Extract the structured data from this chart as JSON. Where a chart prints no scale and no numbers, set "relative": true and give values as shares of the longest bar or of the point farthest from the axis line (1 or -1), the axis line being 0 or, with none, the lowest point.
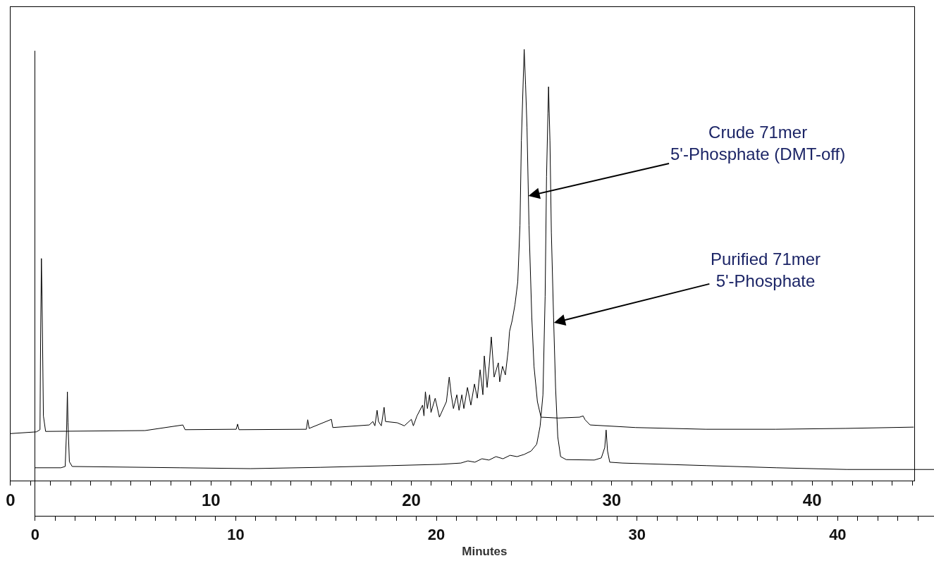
{
  "chart_data": [
    {
      "type": "line",
      "relative": true,
      "line_style": "solid",
      "marker": "none",
      "xlim": [
        0,
        45.1
      ],
      "xticks": [
        0,
        {
          "value": 1,
          "label": null
        },
        {
          "value": 2,
          "label": null
        },
        {
          "value": 3,
          "label": null
        },
        {
          "value": 4,
          "label": null
        },
        {
          "value": 5,
          "label": null
        },
        {
          "value": 6,
          "label": null
        },
        {
          "value": 7,
          "label": null
        },
        {
          "value": 8,
          "label": null
        },
        {
          "value": 9,
          "label": null
        },
        10,
        {
          "value": 11,
          "label": null
        },
        {
          "value": 12,
          "label": null
        },
        {
          "value": 13,
          "label": null
        },
        {
          "value": 14,
          "label": null
        },
        {
          "value": 15,
          "label": null
        },
        {
          "value": 16,
          "label": null
        },
        {
          "value": 17,
          "label": null
        },
        {
          "value": 18,
          "label": null
        },
        {
          "value": 19,
          "label": null
        },
        20,
        {
          "value": 21,
          "label": null
        },
        {
          "value": 22,
          "label": null
        },
        {
          "value": 23,
          "label": null
        },
        {
          "value": 24,
          "label": null
        },
        {
          "value": 25,
          "label": null
        },
        {
          "value": 26,
          "label": null
        },
        {
          "value": 27,
          "label": null
        },
        {
          "value": 28,
          "label": null
        },
        {
          "value": 29,
          "label": null
        },
        30,
        {
          "value": 31,
          "label": null
        },
        {
          "value": 32,
          "label": null
        },
        {
          "value": 33,
          "label": null
        },
        {
          "value": 34,
          "label": null
        },
        {
          "value": 35,
          "label": null
        },
        {
          "value": 36,
          "label": null
        },
        {
          "value": 37,
          "label": null
        },
        {
          "value": 38,
          "label": null
        },
        {
          "value": 39,
          "label": null
        },
        40,
        {
          "value": 41,
          "label": null
        },
        {
          "value": 42,
          "label": null
        },
        {
          "value": 43,
          "label": null
        },
        {
          "value": 44,
          "label": null
        },
        {
          "value": 45,
          "label": null
        }
      ],
      "annotations": [
        {
          "text": "Crude 71mer\n5'-Phosphate (DMT-off)",
          "x": 25.84,
          "y": 0.66
        }
      ],
      "series": [
        {
          "color": "#000000",
          "x": [
            0,
            1.29,
            1.47,
            1.5,
            1.54,
            1.57,
            1.64,
            1.75,
            6.71,
            8.6,
            8.71,
            11.26,
            11.33,
            11.4,
            14.76,
            14.83,
            14.9,
            16.01,
            16.08,
            17.9,
            18.08,
            18.18,
            18.29,
            18.36,
            18.5,
            18.64,
            18.71,
            19.3,
            19.65,
            20.0,
            20.1,
            20.28,
            20.56,
            20.63,
            20.7,
            20.8,
            20.91,
            20.98,
            21.19,
            21.4,
            21.75,
            21.89,
            21.99,
            22.1,
            22.27,
            22.38,
            22.52,
            22.62,
            22.8,
            22.97,
            23.15,
            23.29,
            23.43,
            23.57,
            23.64,
            23.78,
            23.88,
            23.99,
            24.13,
            24.34,
            24.41,
            24.55,
            24.69,
            24.83,
            24.9,
            25.03,
            25.17,
            25.31,
            25.42,
            25.49,
            25.63,
            25.7,
            25.77,
            25.87,
            26.01,
            26.12,
            26.29,
            26.47,
            27.34,
            28.39,
            28.57,
            28.67,
            28.92,
            31.19,
            34.69,
            38.18,
            41.68,
            45.07
          ],
          "values": [
            0.109,
            0.113,
            0.118,
            0.33,
            0.515,
            0.428,
            0.15,
            0.114,
            0.116,
            0.129,
            0.118,
            0.119,
            0.131,
            0.118,
            0.119,
            0.141,
            0.121,
            0.142,
            0.123,
            0.129,
            0.137,
            0.127,
            0.163,
            0.137,
            0.127,
            0.17,
            0.137,
            0.134,
            0.127,
            0.142,
            0.127,
            0.15,
            0.175,
            0.15,
            0.206,
            0.167,
            0.199,
            0.158,
            0.191,
            0.147,
            0.183,
            0.24,
            0.199,
            0.167,
            0.199,
            0.163,
            0.199,
            0.167,
            0.216,
            0.175,
            0.224,
            0.191,
            0.257,
            0.199,
            0.289,
            0.216,
            0.265,
            0.333,
            0.24,
            0.273,
            0.229,
            0.265,
            0.245,
            0.301,
            0.346,
            0.371,
            0.408,
            0.461,
            0.592,
            0.788,
            1,
            0.918,
            0.82,
            0.592,
            0.379,
            0.265,
            0.183,
            0.147,
            0.145,
            0.147,
            0.15,
            0.141,
            0.129,
            0.123,
            0.119,
            0.119,
            0.121,
            0.124
          ]
        }
      ]
    },
    {
      "type": "line",
      "relative": true,
      "line_style": "solid",
      "marker": "none",
      "xlabel": "Minutes",
      "xlim": [
        0,
        44.8
      ],
      "xticks": [
        0,
        {
          "value": 1,
          "label": null
        },
        {
          "value": 2,
          "label": null
        },
        {
          "value": 3,
          "label": null
        },
        {
          "value": 4,
          "label": null
        },
        {
          "value": 5,
          "label": null
        },
        {
          "value": 6,
          "label": null
        },
        {
          "value": 7,
          "label": null
        },
        {
          "value": 8,
          "label": null
        },
        {
          "value": 9,
          "label": null
        },
        10,
        {
          "value": 11,
          "label": null
        },
        {
          "value": 12,
          "label": null
        },
        {
          "value": 13,
          "label": null
        },
        {
          "value": 14,
          "label": null
        },
        {
          "value": 15,
          "label": null
        },
        {
          "value": 16,
          "label": null
        },
        {
          "value": 17,
          "label": null
        },
        {
          "value": 18,
          "label": null
        },
        {
          "value": 19,
          "label": null
        },
        20,
        {
          "value": 21,
          "label": null
        },
        {
          "value": 22,
          "label": null
        },
        {
          "value": 23,
          "label": null
        },
        {
          "value": 24,
          "label": null
        },
        {
          "value": 25,
          "label": null
        },
        {
          "value": 26,
          "label": null
        },
        {
          "value": 27,
          "label": null
        },
        {
          "value": 28,
          "label": null
        },
        {
          "value": 29,
          "label": null
        },
        30,
        {
          "value": 31,
          "label": null
        },
        {
          "value": 32,
          "label": null
        },
        {
          "value": 33,
          "label": null
        },
        {
          "value": 34,
          "label": null
        },
        {
          "value": 35,
          "label": null
        },
        {
          "value": 36,
          "label": null
        },
        {
          "value": 37,
          "label": null
        },
        {
          "value": 38,
          "label": null
        },
        {
          "value": 39,
          "label": null
        },
        40,
        {
          "value": 41,
          "label": null
        },
        {
          "value": 42,
          "label": null
        },
        {
          "value": 43,
          "label": null
        },
        {
          "value": 44,
          "label": null
        }
      ],
      "annotations": [
        {
          "text": "Purified 71mer\n5'-Phosphate",
          "x": 25.86,
          "y": 0.45
        }
      ],
      "series": [
        {
          "color": "#000000",
          "x": [
            0,
            1.29,
            1.5,
            1.57,
            1.61,
            1.64,
            1.71,
            1.85,
            7.24,
            10.73,
            14.23,
            17.73,
            20.17,
            21.22,
            21.57,
            21.92,
            22.27,
            22.62,
            22.97,
            23.32,
            23.67,
            24.02,
            24.37,
            24.72,
            25.0,
            25.17,
            25.31,
            25.42,
            25.49,
            25.56,
            25.59,
            25.66,
            25.73,
            25.84,
            25.94,
            26.05,
            26.19,
            26.47,
            27.87,
            28.22,
            28.39,
            28.46,
            28.53,
            28.64,
            29.27,
            33.46,
            36.96,
            40.45,
            44.8
          ],
          "values": [
            0.112,
            0.112,
            0.115,
            0.2,
            0.289,
            0.217,
            0.126,
            0.115,
            0.112,
            0.11,
            0.113,
            0.117,
            0.12,
            0.123,
            0.128,
            0.125,
            0.133,
            0.13,
            0.138,
            0.133,
            0.141,
            0.138,
            0.143,
            0.151,
            0.167,
            0.209,
            0.282,
            0.512,
            0.791,
            0.939,
            1,
            0.874,
            0.66,
            0.463,
            0.299,
            0.184,
            0.138,
            0.131,
            0.13,
            0.135,
            0.159,
            0.2,
            0.151,
            0.125,
            0.123,
            0.117,
            0.112,
            0.108,
            0.108
          ]
        }
      ]
    }
  ]
}
